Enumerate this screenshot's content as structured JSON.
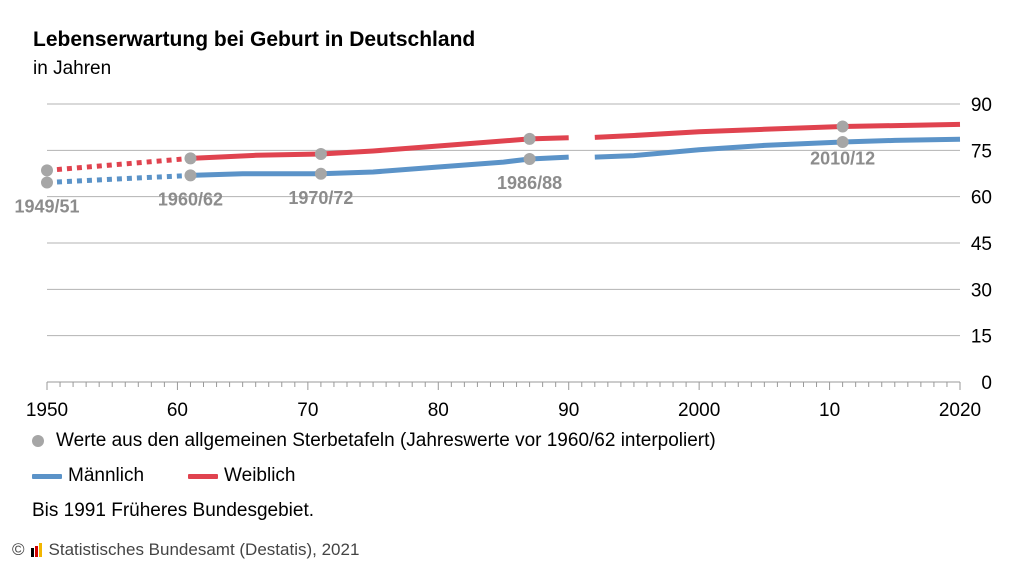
{
  "title": "Lebenserwartung bei Geburt in Deutschland",
  "subtitle": "in Jahren",
  "legend": {
    "points_label": "Werte aus den allgemeinen Sterbetafeln (Jahreswerte vor 1960/62 interpoliert)",
    "male_label": "Männlich",
    "female_label": "Weiblich"
  },
  "note": "Bis 1991 Früheres Bundesgebiet.",
  "footer": {
    "copyright": "©",
    "source": "Statistisches Bundesamt (Destatis), 2021"
  },
  "colors": {
    "male": "#5b93c8",
    "female": "#e0434f",
    "points": "#a6a6a6",
    "grid": "#b3b3b3",
    "point_label": "#8c8c8c"
  },
  "chart_data": {
    "type": "line",
    "x_range": [
      1950,
      2020
    ],
    "ylim": [
      0,
      90
    ],
    "y_ticks": [
      0,
      15,
      30,
      45,
      60,
      75,
      90
    ],
    "y_axis_side": "right",
    "x_ticks": [
      1950,
      1960,
      1970,
      1980,
      1990,
      2000,
      2010,
      2020
    ],
    "x_tick_labels": [
      "1950",
      "60",
      "70",
      "80",
      "90",
      "2000",
      "10",
      "2020"
    ],
    "grid": "horizontal",
    "series": [
      {
        "name": "Männlich",
        "color_key": "male",
        "segments": [
          {
            "style": "dotted",
            "points": [
              [
                1950,
                64.6
              ],
              [
                1961,
                66.9
              ]
            ]
          },
          {
            "style": "solid",
            "points": [
              [
                1961,
                66.9
              ],
              [
                1965,
                67.4
              ],
              [
                1968,
                67.4
              ],
              [
                1971,
                67.4
              ],
              [
                1975,
                68.0
              ],
              [
                1980,
                69.6
              ],
              [
                1985,
                71.2
              ],
              [
                1987,
                72.2
              ]
            ]
          },
          {
            "style": "solid",
            "points": [
              [
                1987,
                72.2
              ],
              [
                1990,
                72.8
              ]
            ]
          },
          {
            "style": "solid",
            "points": [
              [
                1992,
                72.8
              ],
              [
                1995,
                73.3
              ],
              [
                2000,
                75.2
              ],
              [
                2005,
                76.6
              ],
              [
                2011,
                77.7
              ],
              [
                2015,
                78.2
              ],
              [
                2020,
                78.6
              ]
            ]
          }
        ]
      },
      {
        "name": "Weiblich",
        "color_key": "female",
        "segments": [
          {
            "style": "dotted",
            "points": [
              [
                1950,
                68.5
              ],
              [
                1961,
                72.4
              ]
            ]
          },
          {
            "style": "solid",
            "points": [
              [
                1961,
                72.4
              ],
              [
                1966,
                73.4
              ],
              [
                1971,
                73.8
              ],
              [
                1975,
                74.8
              ],
              [
                1980,
                76.4
              ],
              [
                1987,
                78.7
              ]
            ]
          },
          {
            "style": "solid",
            "points": [
              [
                1987,
                78.7
              ],
              [
                1990,
                79.1
              ]
            ]
          },
          {
            "style": "solid",
            "points": [
              [
                1992,
                79.2
              ],
              [
                1995,
                79.8
              ],
              [
                2000,
                81.0
              ],
              [
                2005,
                81.8
              ],
              [
                2011,
                82.7
              ],
              [
                2015,
                83.0
              ],
              [
                2020,
                83.4
              ]
            ]
          }
        ]
      }
    ],
    "life_table_points": [
      {
        "label": "1949/51",
        "x": 1950,
        "male": 64.6,
        "female": 68.5,
        "label_pos": "below"
      },
      {
        "label": "1960/62",
        "x": 1961,
        "male": 66.9,
        "female": 72.4,
        "label_pos": "below"
      },
      {
        "label": "1970/72",
        "x": 1971,
        "male": 67.4,
        "female": 73.8,
        "label_pos": "below"
      },
      {
        "label": "1986/88",
        "x": 1987,
        "male": 72.2,
        "female": 78.7,
        "label_pos": "below"
      },
      {
        "label": "2010/12",
        "x": 2011,
        "male": 77.7,
        "female": 82.7,
        "label_pos": "between"
      }
    ]
  }
}
